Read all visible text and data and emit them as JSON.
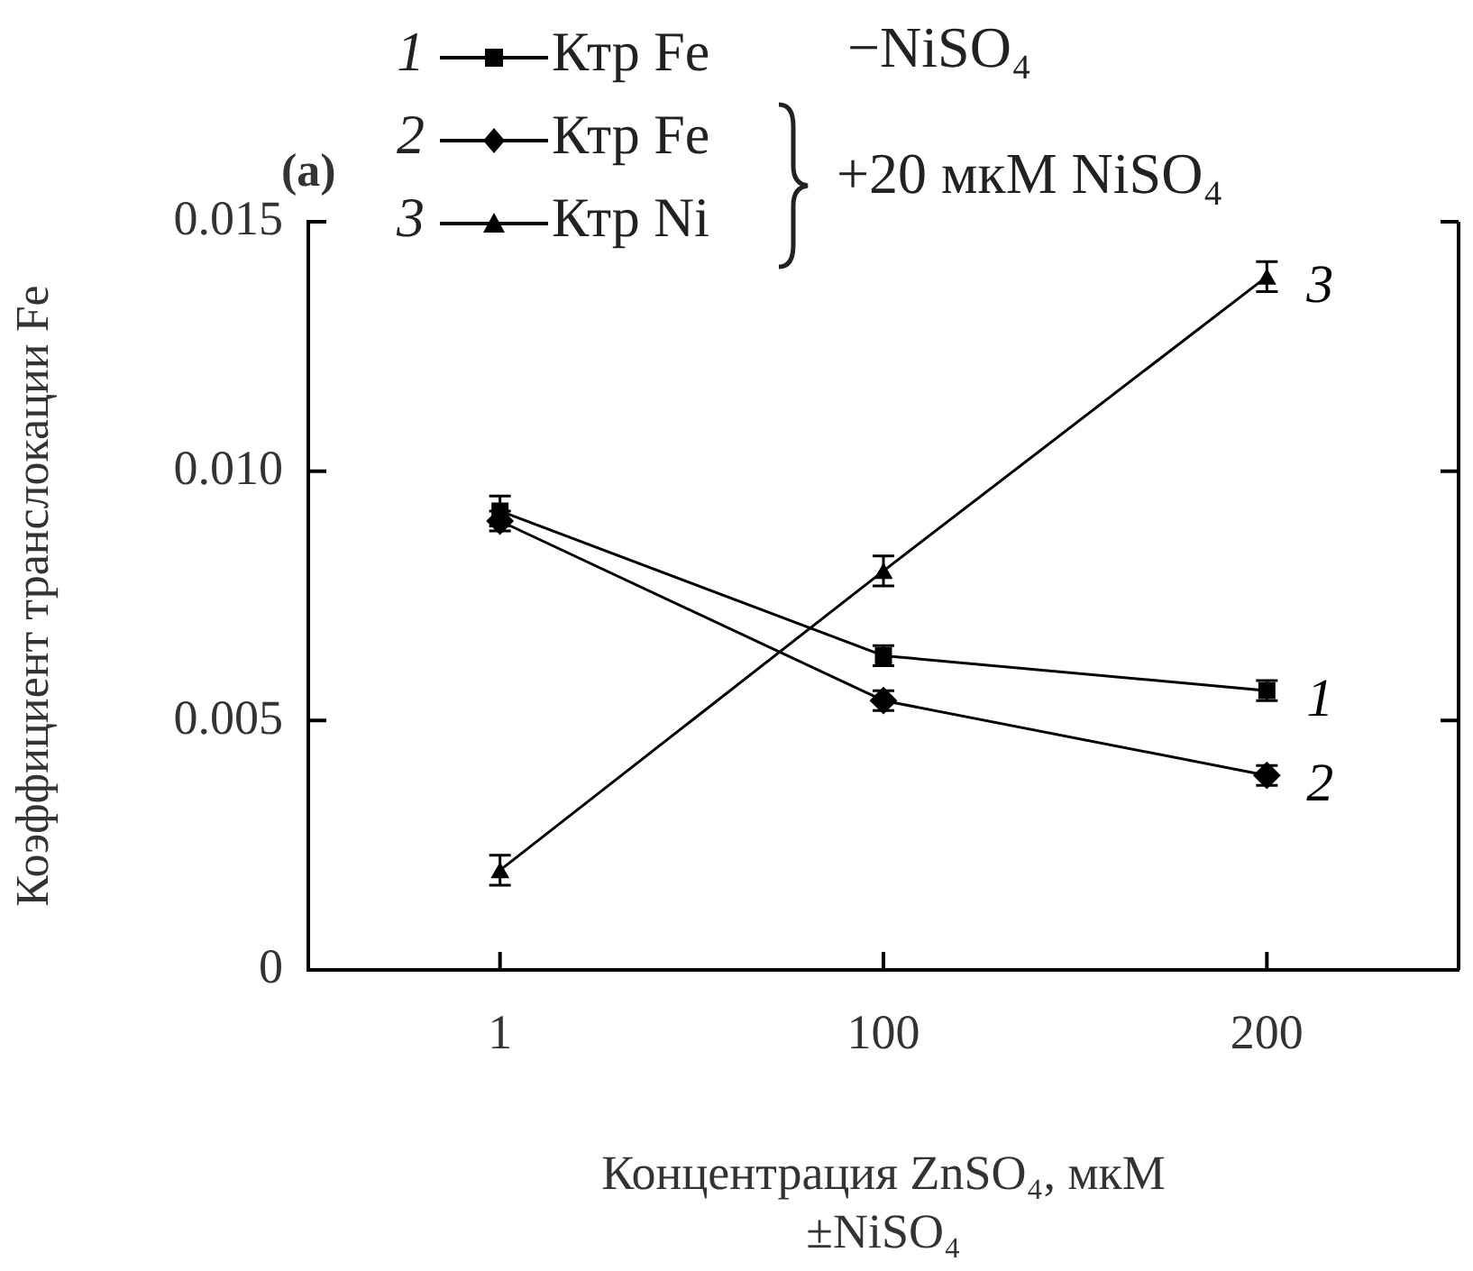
{
  "chart_data": {
    "type": "line",
    "title": "(a)",
    "xlabel": "Концентрация ZnSO₄, мкМ\n±NiSO₄",
    "ylabel": "Коэффициент транслокации Fe",
    "categories": [
      "1",
      "100",
      "200"
    ],
    "series": [
      {
        "name": "Ктр Fe",
        "color": "#000000",
        "marker": "square",
        "values": [
          0.0092,
          0.0063,
          0.0056
        ],
        "errors": [
          0.0003,
          0.0002,
          0.0002
        ]
      },
      {
        "name": "Ктр Fe",
        "color": "#000000",
        "marker": "diamond",
        "values": [
          0.009,
          0.0054,
          0.0039
        ],
        "errors": [
          0.0002,
          0.0002,
          0.0002
        ]
      },
      {
        "name": "Ктр Ni",
        "color": "#000000",
        "marker": "triangle",
        "values": [
          0.002,
          0.008,
          0.0139
        ],
        "errors": [
          0.0003,
          0.0003,
          0.0003
        ]
      }
    ],
    "ylim": [
      0,
      0.015
    ],
    "yticks": [
      0,
      0.005,
      {
        "value": 0.01,
        "label": "0.010"
      },
      0.015
    ],
    "grid": false,
    "legend": "top left",
    "line_style": "solid",
    "annotations": [
      "−NiSO₄",
      "+20 мкМ NiSO₄",
      {
        "text": "1",
        "x": "200",
        "y": 0.0056
      },
      {
        "text": "2",
        "x": "200",
        "y": 0.0039
      },
      {
        "text": "3",
        "x": "200",
        "y": 0.0139
      }
    ]
  }
}
